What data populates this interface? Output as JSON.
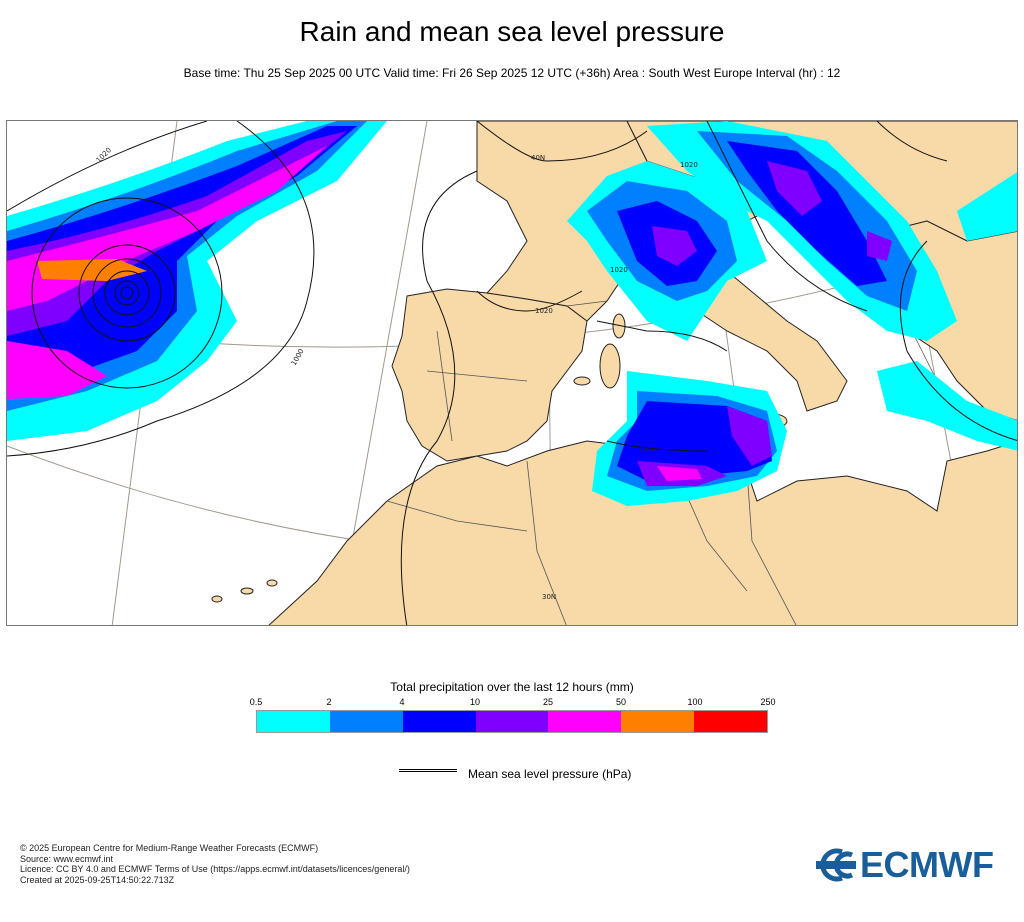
{
  "header": {
    "title": "Rain and mean sea level pressure",
    "subtitle": "Base time: Thu 25 Sep 2025 00 UTC Valid time: Fri 26 Sep 2025 12 UTC (+36h) Area : South West Europe Interval (hr) : 12"
  },
  "map": {
    "contour_labels": [
      "1020",
      "1020",
      "1020",
      "1020",
      "1000",
      "1020"
    ],
    "graticule_labels": [
      "30N",
      "40N"
    ],
    "colors": {
      "land": "#f8d9a8",
      "sea": "#ffffff",
      "coast": "#222222",
      "border": "#555555",
      "graticule": "#a09a8c"
    }
  },
  "legend": {
    "title": "Total precipitation over the last 12 hours (mm)",
    "ticks": [
      "0.5",
      "2",
      "4",
      "10",
      "25",
      "50",
      "100",
      "250"
    ],
    "colors": [
      "#00ffff",
      "#0080ff",
      "#0000ff",
      "#8000ff",
      "#ff00ff",
      "#ff8000",
      "#ff0000"
    ],
    "pressure_label": "Mean sea level pressure (hPa)"
  },
  "footer": {
    "lines": [
      "© 2025 European Centre for Medium-Range Weather Forecasts (ECMWF)",
      "Source: www.ecmwf.int",
      "Licence: CC BY 4.0 and ECMWF Terms of Use (https://apps.ecmwf.int/datasets/licences/general/)",
      "Created at 2025-09-25T14:50:22.713Z"
    ]
  },
  "logo": {
    "text": "ECMWF",
    "color": "#1a5e99"
  }
}
